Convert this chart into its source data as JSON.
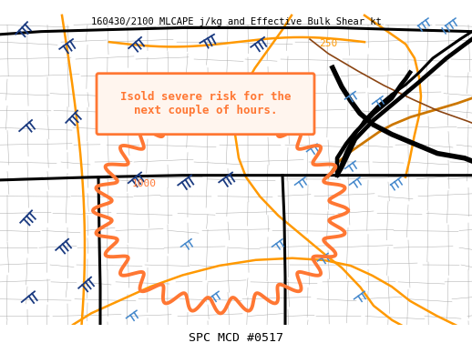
{
  "title_top": "160430/2100 MLCAPE j/kg and Effective Bulk Shear kt",
  "title_bottom": "SPC MCD #0517",
  "bg_color": "#ffffff",
  "map_bg": "#ffffff",
  "annotation_text": "Isold severe risk for the\nnext couple of hours.",
  "annotation_color": "#ff7733",
  "contour_color_orange": "#ff9900",
  "contour_color_dark_orange": "#cc7700",
  "contour_color_brown": "#8b4513",
  "state_border_color": "#000000",
  "county_border_color": "#aaaaaa",
  "wind_barb_color_dark": "#1a3a80",
  "wind_barb_color_light": "#4488cc",
  "label_250": "250",
  "label_1000": "1000",
  "figsize": [
    5.18,
    3.88
  ],
  "dpi": 100
}
